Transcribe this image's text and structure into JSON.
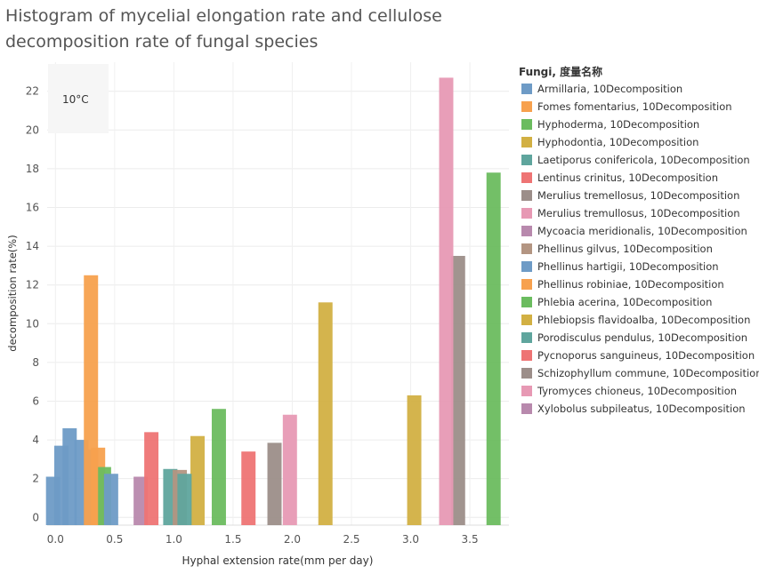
{
  "chart_data": {
    "type": "bar",
    "title_lines": [
      "Histogram of mycelial elongation rate and cellulose",
      "decomposition rate of fungal species"
    ],
    "xlabel": "Hyphal extension rate(mm per day)",
    "ylabel": "decomposition rate(%)",
    "xlim": [
      -0.07,
      3.83
    ],
    "ylim": [
      -0.4,
      23.5
    ],
    "x_ticks": [
      "0.0",
      "0.5",
      "1.0",
      "1.5",
      "2.0",
      "2.5",
      "3.0",
      "3.5"
    ],
    "x_tick_values": [
      0,
      0.5,
      1.0,
      1.5,
      2.0,
      2.5,
      3.0,
      3.5
    ],
    "y_ticks": [
      "0",
      "2",
      "4",
      "6",
      "8",
      "10",
      "12",
      "14",
      "16",
      "18",
      "20",
      "22"
    ],
    "y_tick_values": [
      0,
      2,
      4,
      6,
      8,
      10,
      12,
      14,
      16,
      18,
      20,
      22
    ],
    "bar_width": 0.12,
    "grid": true,
    "annotation": "10°C",
    "legend_title": "Fungi, 度量名称",
    "legend_position": "right",
    "series": [
      {
        "name": "Armillaria, 10Decomposition",
        "color": "#6E9BC6",
        "bars": [
          {
            "x": -0.02,
            "y": 2.1
          },
          {
            "x": 0.05,
            "y": 3.7
          },
          {
            "x": 0.12,
            "y": 4.6
          },
          {
            "x": 0.22,
            "y": 4.0
          },
          {
            "x": 0.3,
            "y": 3.5
          }
        ]
      },
      {
        "name": "Fomes fomentarius, 10Decomposition",
        "color": "#F7A14E",
        "bars": [
          {
            "x": 0.36,
            "y": 3.6
          }
        ]
      },
      {
        "name": "Hyphoderma, 10Decomposition",
        "color": "#6BBC5F",
        "bars": [
          {
            "x": 0.41,
            "y": 2.6
          }
        ]
      },
      {
        "name": "Hyphodontia, 10Decomposition",
        "color": "#D2B043",
        "bars": [
          {
            "x": 1.2,
            "y": 4.2
          }
        ]
      },
      {
        "name": "Laetiporus conifericola, 10Decomposition",
        "color": "#5FA59D",
        "bars": [
          {
            "x": 0.97,
            "y": 2.5
          }
        ]
      },
      {
        "name": "Lentinus crinitus, 10Decomposition",
        "color": "#EE7474",
        "bars": [
          {
            "x": 1.63,
            "y": 3.4
          }
        ]
      },
      {
        "name": "Merulius tremellosus, 10Decomposition",
        "color": "#9C8E89",
        "bars": [
          {
            "x": 1.85,
            "y": 3.85
          }
        ]
      },
      {
        "name": "Merulius tremullosus, 10Decomposition",
        "color": "#E799B4",
        "bars": [
          {
            "x": 1.98,
            "y": 5.3
          }
        ]
      },
      {
        "name": "Mycoacia meridionalis, 10Decomposition",
        "color": "#B889AD",
        "bars": [
          {
            "x": 0.72,
            "y": 2.1
          }
        ]
      },
      {
        "name": "Phellinus gilvus, 10Decomposition",
        "color": "#B39582",
        "bars": [
          {
            "x": 1.05,
            "y": 2.45
          }
        ]
      },
      {
        "name": "Phellinus hartigii, 10Decomposition",
        "color": "#6E9BC6",
        "bars": [
          {
            "x": 0.47,
            "y": 2.25
          }
        ]
      },
      {
        "name": "Phellinus robiniae, 10Decomposition",
        "color": "#F7A14E",
        "bars": [
          {
            "x": 0.3,
            "y": 12.5
          }
        ]
      },
      {
        "name": "Phlebia acerina, 10Decomposition",
        "color": "#6BBC5F",
        "bars": [
          {
            "x": 1.38,
            "y": 5.6
          },
          {
            "x": 3.7,
            "y": 17.8
          }
        ]
      },
      {
        "name": "Phlebiopsis flavidoalba, 10Decomposition",
        "color": "#D2B043",
        "bars": [
          {
            "x": 2.28,
            "y": 11.1
          },
          {
            "x": 3.03,
            "y": 6.3
          }
        ]
      },
      {
        "name": "Porodisculus pendulus, 10Decomposition",
        "color": "#5FA59D",
        "bars": [
          {
            "x": 1.09,
            "y": 2.25
          }
        ]
      },
      {
        "name": "Pycnoporus sanguineus, 10Decomposition",
        "color": "#EE7474",
        "bars": [
          {
            "x": 0.81,
            "y": 4.4
          }
        ]
      },
      {
        "name": "Schizophyllum commune, 10Decomposition",
        "color": "#9C8E89",
        "bars": [
          {
            "x": 3.4,
            "y": 13.5
          }
        ]
      },
      {
        "name": "Tyromyces chioneus, 10Decomposition",
        "color": "#E799B4",
        "bars": [
          {
            "x": 3.3,
            "y": 22.7
          }
        ]
      },
      {
        "name": "Xylobolus subpileatus, 10Decomposition",
        "color": "#B889AD",
        "bars": []
      }
    ]
  }
}
